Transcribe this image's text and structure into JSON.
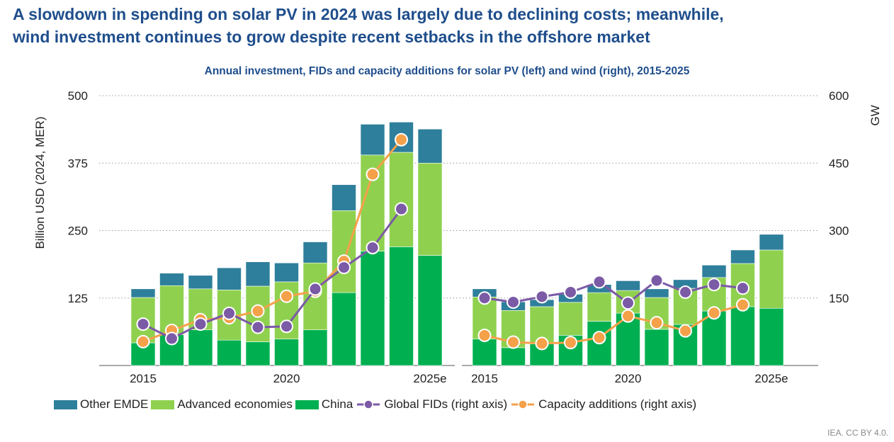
{
  "title_line1": "A slowdown in spending on solar PV in 2024 was largely due to declining costs; meanwhile,",
  "title_line2": "wind investment continues to grow despite recent setbacks in the offshore market",
  "source": "IEA. CC BY 4.0.",
  "colors": {
    "other_emde": "#2e7f9b",
    "advanced_economies": "#8fd14f",
    "china": "#00b050",
    "global_fids": "#7b5aa6",
    "capacity_additions": "#f4a14a",
    "title": "#1f4e8c"
  },
  "legend": [
    {
      "label": "Other EMDE",
      "kind": "box",
      "color": "#2e7f9b"
    },
    {
      "label": "Advanced economies",
      "kind": "box",
      "color": "#8fd14f"
    },
    {
      "label": "China",
      "kind": "box",
      "color": "#00b050"
    },
    {
      "label": "Global FIDs (right axis)",
      "kind": "line",
      "color": "#7b5aa6"
    },
    {
      "label": "Capacity additions (right axis)",
      "kind": "line",
      "color": "#f4a14a"
    }
  ],
  "chart_data": {
    "type": "bar",
    "title": "Annual investment, FIDs and capacity additions for solar PV (left) and wind (right), 2015-2025",
    "ylabel": "Billion USD (2024, MER)",
    "y2label": "GW",
    "ylim": [
      0,
      500
    ],
    "y2lim": [
      0,
      600
    ],
    "yticks": [
      125,
      250,
      375,
      500
    ],
    "y2ticks": [
      150,
      300,
      450,
      600
    ],
    "xtick_labels": [
      "2015",
      "2020",
      "2025e"
    ],
    "gridlines": "dotted",
    "legend_position": "bottom",
    "panels": [
      {
        "name": "solar PV",
        "categories": [
          "2015",
          "2016",
          "2017",
          "2018",
          "2019",
          "2020",
          "2021",
          "2022",
          "2023",
          "2024",
          "2025e"
        ],
        "series": [
          {
            "name": "China",
            "type": "stacked-bar",
            "values": [
              42,
              57,
              66,
              47,
              44,
              49,
              66,
              135,
              212,
              220,
              204
            ]
          },
          {
            "name": "Advanced economies",
            "type": "stacked-bar",
            "values": [
              84,
              91,
              76,
              93,
              103,
              106,
              124,
              152,
              178,
              175,
              171
            ]
          },
          {
            "name": "Other EMDE",
            "type": "stacked-bar",
            "values": [
              16,
              23,
              25,
              41,
              45,
              35,
              39,
              48,
              57,
              56,
              63
            ]
          },
          {
            "name": "Global FIDs (right axis)",
            "type": "line",
            "axis": "right",
            "values": [
              92,
              60,
              92,
              116,
              85,
              87,
              170,
              218,
              262,
              348,
              null
            ]
          },
          {
            "name": "Capacity additions (right axis)",
            "type": "line",
            "axis": "right",
            "values": [
              53,
              78,
              102,
              106,
              121,
              154,
              165,
              232,
              425,
              502,
              null
            ]
          }
        ]
      },
      {
        "name": "wind",
        "categories": [
          "2015",
          "2016",
          "2017",
          "2018",
          "2019",
          "2020",
          "2021",
          "2022",
          "2023",
          "2024",
          "2025e"
        ],
        "series": [
          {
            "name": "China",
            "type": "stacked-bar",
            "values": [
              49,
              33,
              40,
              56,
              82,
              97,
              67,
              76,
              101,
              109,
              106
            ]
          },
          {
            "name": "Advanced economies",
            "type": "stacked-bar",
            "values": [
              78,
              69,
              69,
              61,
              53,
              42,
              59,
              67,
              62,
              80,
              108
            ]
          },
          {
            "name": "Other EMDE",
            "type": "stacked-bar",
            "values": [
              15,
              16,
              13,
              15,
              15,
              18,
              16,
              16,
              23,
              25,
              29
            ]
          },
          {
            "name": "Global FIDs (right axis)",
            "type": "line",
            "axis": "right",
            "values": [
              150,
              141,
              153,
              163,
              186,
              139,
              189,
              163,
              180,
              172,
              null
            ]
          },
          {
            "name": "Capacity additions (right axis)",
            "type": "line",
            "axis": "right",
            "values": [
              67,
              52,
              49,
              51,
              62,
              110,
              95,
              77,
              117,
              135,
              null
            ]
          }
        ]
      }
    ]
  }
}
